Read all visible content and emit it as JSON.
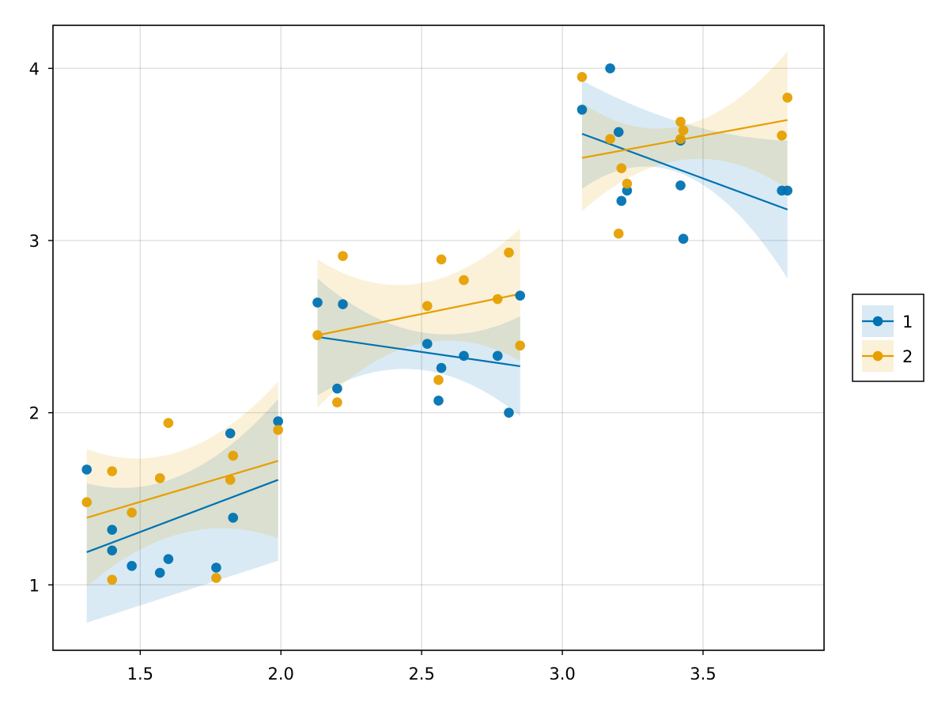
{
  "chart_data": {
    "type": "scatter",
    "title": "",
    "xlabel": "",
    "ylabel": "",
    "xlim": [
      1.19,
      3.93
    ],
    "ylim": [
      0.62,
      4.25
    ],
    "grid": true,
    "legend_position": "right",
    "x_ticks": [
      {
        "value": 1.5,
        "label": "1.5"
      },
      {
        "value": 2.0,
        "label": "2.0"
      },
      {
        "value": 2.5,
        "label": "2.5"
      },
      {
        "value": 3.0,
        "label": "3.0"
      },
      {
        "value": 3.5,
        "label": "3.5"
      }
    ],
    "y_ticks": [
      {
        "value": 1,
        "label": "1"
      },
      {
        "value": 2,
        "label": "2"
      },
      {
        "value": 3,
        "label": "3"
      },
      {
        "value": 4,
        "label": "4"
      }
    ],
    "series": [
      {
        "name": "1",
        "color": "#0072b2",
        "points": [
          [
            1.31,
            1.67
          ],
          [
            1.4,
            1.32
          ],
          [
            1.4,
            1.2
          ],
          [
            1.47,
            1.11
          ],
          [
            1.57,
            1.07
          ],
          [
            1.6,
            1.15
          ],
          [
            1.77,
            1.1
          ],
          [
            1.82,
            1.88
          ],
          [
            1.83,
            1.39
          ],
          [
            1.99,
            1.95
          ],
          [
            2.13,
            2.64
          ],
          [
            2.2,
            2.14
          ],
          [
            2.22,
            2.63
          ],
          [
            2.52,
            2.4
          ],
          [
            2.56,
            2.07
          ],
          [
            2.57,
            2.26
          ],
          [
            2.65,
            2.33
          ],
          [
            2.77,
            2.33
          ],
          [
            2.81,
            2.0
          ],
          [
            2.85,
            2.68
          ],
          [
            3.07,
            3.76
          ],
          [
            3.17,
            4.0
          ],
          [
            3.2,
            3.63
          ],
          [
            3.21,
            3.23
          ],
          [
            3.23,
            3.29
          ],
          [
            3.42,
            3.58
          ],
          [
            3.42,
            3.32
          ],
          [
            3.43,
            3.01
          ],
          [
            3.78,
            3.29
          ],
          [
            3.8,
            3.29
          ]
        ],
        "fits": [
          {
            "x": [
              1.31,
              1.99
            ],
            "y": [
              1.19,
              1.61
            ],
            "band_lo": [
              0.78,
              0.96,
              1.14
            ],
            "band_hi": [
              1.59,
              1.64,
              2.08
            ]
          },
          {
            "x": [
              2.13,
              2.85
            ],
            "y": [
              2.44,
              2.27
            ],
            "band_lo": [
              2.1,
              2.25,
              1.98
            ],
            "band_hi": [
              2.78,
              2.47,
              2.56
            ]
          },
          {
            "x": [
              3.07,
              3.8
            ],
            "y": [
              3.62,
              3.18
            ],
            "band_lo": [
              3.3,
              3.38,
              2.78
            ],
            "band_hi": [
              3.93,
              3.68,
              3.58
            ]
          }
        ]
      },
      {
        "name": "2",
        "color": "#e69f00",
        "points": [
          [
            1.31,
            1.48
          ],
          [
            1.4,
            1.66
          ],
          [
            1.4,
            1.03
          ],
          [
            1.47,
            1.42
          ],
          [
            1.57,
            1.62
          ],
          [
            1.6,
            1.94
          ],
          [
            1.77,
            1.04
          ],
          [
            1.82,
            1.61
          ],
          [
            1.83,
            1.75
          ],
          [
            1.99,
            1.9
          ],
          [
            2.13,
            2.45
          ],
          [
            2.2,
            2.06
          ],
          [
            2.22,
            2.91
          ],
          [
            2.52,
            2.62
          ],
          [
            2.56,
            2.19
          ],
          [
            2.57,
            2.89
          ],
          [
            2.65,
            2.77
          ],
          [
            2.77,
            2.66
          ],
          [
            2.81,
            2.93
          ],
          [
            2.85,
            2.39
          ],
          [
            3.07,
            3.95
          ],
          [
            3.17,
            3.59
          ],
          [
            3.2,
            3.04
          ],
          [
            3.21,
            3.42
          ],
          [
            3.23,
            3.33
          ],
          [
            3.42,
            3.69
          ],
          [
            3.42,
            3.59
          ],
          [
            3.43,
            3.64
          ],
          [
            3.78,
            3.61
          ],
          [
            3.8,
            3.83
          ]
        ],
        "fits": [
          {
            "x": [
              1.31,
              1.99
            ],
            "y": [
              1.39,
              1.72
            ],
            "band_lo": [
              0.99,
              1.3,
              1.27
            ],
            "band_hi": [
              1.79,
              1.78,
              2.18
            ]
          },
          {
            "x": [
              2.13,
              2.85
            ],
            "y": [
              2.45,
              2.69
            ],
            "band_lo": [
              2.03,
              2.4,
              2.3
            ],
            "band_hi": [
              2.89,
              2.75,
              3.07
            ]
          },
          {
            "x": [
              3.07,
              3.8
            ],
            "y": [
              3.48,
              3.7
            ],
            "band_lo": [
              3.17,
              3.47,
              3.3
            ],
            "band_hi": [
              3.8,
              3.67,
              4.1
            ]
          }
        ]
      }
    ]
  }
}
